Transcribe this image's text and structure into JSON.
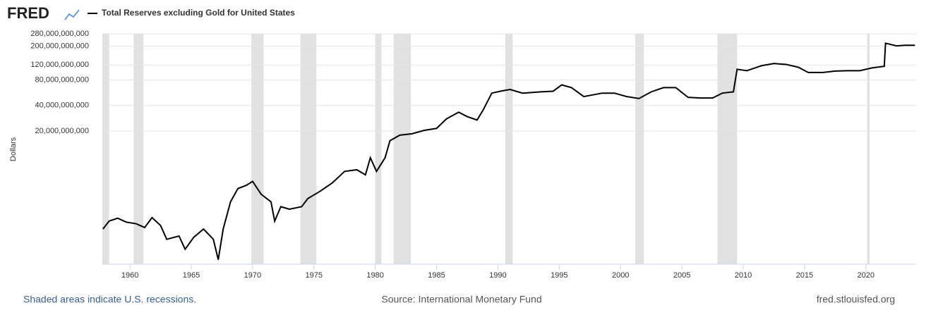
{
  "logo": "FRED",
  "chart_data": {
    "type": "line",
    "title": "Total Reserves excluding Gold for United States",
    "y_label": "Dollars",
    "log_scale": true,
    "grid": true,
    "xlim": [
      1957.75,
      2024.1
    ],
    "xticks": [
      1960,
      1965,
      1970,
      1975,
      1980,
      1985,
      1990,
      1995,
      2000,
      2005,
      2010,
      2015,
      2020
    ],
    "ylim": [
      540000000,
      280000000000
    ],
    "yticks": [
      {
        "value": 20000000000,
        "label": "20,000,000,000"
      },
      {
        "value": 40000000000,
        "label": "40,000,000,000"
      },
      {
        "value": 80000000000,
        "label": "80,000,000,000"
      },
      {
        "value": 120000000000,
        "label": "120,000,000,000"
      },
      {
        "value": 200000000000,
        "label": "200,000,000,000"
      },
      {
        "value": 280000000000,
        "label": "280,000,000,000"
      }
    ],
    "recession_color": "#e1e1e1",
    "recessions": [
      [
        1957.75,
        1958.3
      ],
      [
        1960.3,
        1961.1
      ],
      [
        1969.9,
        1970.9
      ],
      [
        1973.9,
        1975.2
      ],
      [
        1980.0,
        1980.5
      ],
      [
        1981.5,
        1982.9
      ],
      [
        1990.6,
        1991.2
      ],
      [
        2001.2,
        2001.9
      ],
      [
        2007.9,
        2009.5
      ],
      [
        2020.1,
        2020.3
      ]
    ],
    "series": [
      {
        "name": "Total Reserves excluding Gold for United States",
        "color": "#000000",
        "x": [
          1957.8,
          1958.3,
          1959,
          1959.7,
          1960.5,
          1961.2,
          1961.8,
          1962.5,
          1963,
          1964,
          1964.5,
          1965.2,
          1966,
          1966.8,
          1967.2,
          1967.6,
          1968.2,
          1968.8,
          1969.5,
          1970,
          1970.7,
          1971.5,
          1971.8,
          1972.3,
          1973,
          1974,
          1974.5,
          1975.5,
          1976.5,
          1977.5,
          1978.5,
          1979.2,
          1979.6,
          1980.1,
          1980.8,
          1981.2,
          1982,
          1983,
          1984,
          1985,
          1985.8,
          1986.8,
          1987.5,
          1988.3,
          1988.8,
          1989.5,
          1990.3,
          1991,
          1992,
          1993.5,
          1994.5,
          1995.2,
          1996,
          1997,
          1998.5,
          1999.5,
          2000.5,
          2001.5,
          2002.5,
          2003.5,
          2004.5,
          2005.5,
          2006.5,
          2007.5,
          2008.3,
          2009.2,
          2009.5,
          2010.3,
          2011.5,
          2012.5,
          2013.5,
          2014.5,
          2015.3,
          2016.5,
          2017.5,
          2018.5,
          2019.5,
          2020.5,
          2021.5,
          2021.6,
          2022.5,
          2023.2,
          2024
        ],
        "values": [
          1400000000,
          1740000000,
          1880000000,
          1690000000,
          1620000000,
          1460000000,
          1910000000,
          1540000000,
          1060000000,
          1160000000,
          810000000,
          1120000000,
          1400000000,
          1060000000,
          610000000,
          1400000000,
          2930000000,
          4200000000,
          4600000000,
          5100000000,
          3600000000,
          2930000000,
          1740000000,
          2570000000,
          2400000000,
          2570000000,
          3200000000,
          3900000000,
          4900000000,
          6700000000,
          7000000000,
          6100000000,
          9700000000,
          6700000000,
          9700000000,
          15400000000,
          17900000000,
          18600000000,
          20400000000,
          21500000000,
          27800000000,
          33400000000,
          29600000000,
          27000000000,
          35500000000,
          56000000000,
          59400000000,
          61800000000,
          56000000000,
          58000000000,
          59000000000,
          70000000000,
          65000000000,
          51000000000,
          56000000000,
          56000000000,
          51000000000,
          48400000000,
          58000000000,
          65000000000,
          65000000000,
          50000000000,
          49000000000,
          49000000000,
          56000000000,
          58000000000,
          107000000000,
          103000000000,
          118000000000,
          125000000000,
          122000000000,
          113000000000,
          98000000000,
          98000000000,
          102000000000,
          103000000000,
          103000000000,
          111000000000,
          116000000000,
          217000000000,
          202000000000,
          205000000000,
          205000000000
        ]
      }
    ],
    "footer_left": "Shaded areas indicate U.S. recessions.",
    "source": "Source: International Monetary Fund",
    "footer_right": "fred.stlouisfed.org"
  }
}
